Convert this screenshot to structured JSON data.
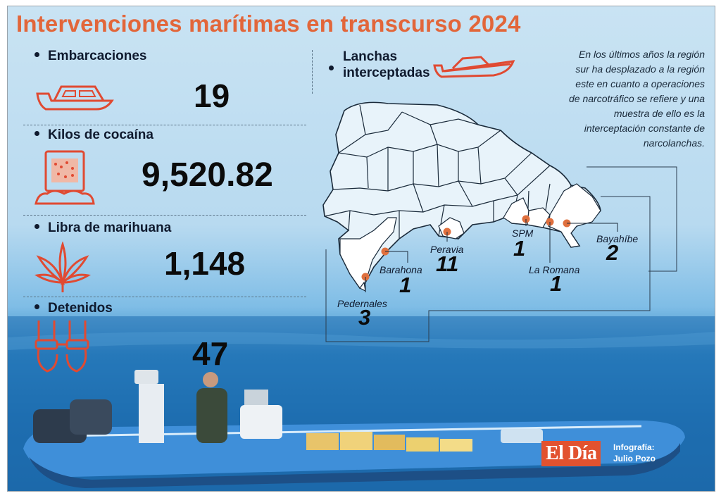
{
  "title": "Intervenciones marítimas en transcurso 2024",
  "stats": [
    {
      "label": "Embarcaciones",
      "value": "19",
      "icon": "boat-icon"
    },
    {
      "label": "Kilos de cocaína",
      "value": "9,520.82",
      "icon": "cocaine-package-icon"
    },
    {
      "label": "Libra de marihuana",
      "value": "1,148",
      "icon": "marijuana-leaf-icon"
    },
    {
      "label": "Detenidos",
      "value": "47",
      "icon": "handcuffs-icon"
    }
  ],
  "lanchas": {
    "label_line1": "Lanchas",
    "label_line2": "interceptadas",
    "icon": "speedboat-icon"
  },
  "note": "En los últimos años la región sur ha desplazado a la región este en cuanto a operaciones de narcotráfico se refiere y una muestra de ello es la interceptación constante de narcolanchas.",
  "locations": [
    {
      "name": "Pedernales",
      "count": "3"
    },
    {
      "name": "Barahona",
      "count": "1"
    },
    {
      "name": "Peravia",
      "count": "11"
    },
    {
      "name": "SPM",
      "count": "1"
    },
    {
      "name": "La Romana",
      "count": "1"
    },
    {
      "name": "Bayahíbe",
      "count": "2"
    }
  ],
  "brand": "El Día",
  "credit_line1": "Infografía:",
  "credit_line2": "Julio Pozo",
  "colors": {
    "accent": "#e2663a",
    "text": "#0f1a2e",
    "brand": "#e2522f",
    "marker": "#e0703e"
  }
}
